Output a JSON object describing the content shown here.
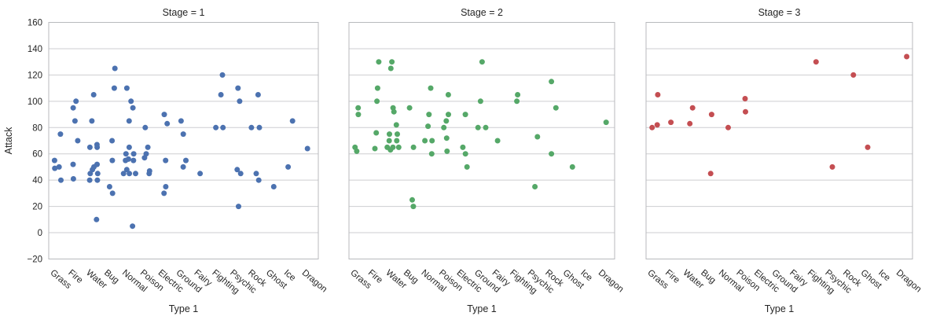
{
  "chart_data": {
    "type": "scatter",
    "subtype": "strip-plot",
    "facet_variable": "Stage",
    "xlabel": "Type 1",
    "ylabel": "Attack",
    "ylim": [
      -20,
      160
    ],
    "yticks": [
      160,
      140,
      120,
      100,
      80,
      60,
      40,
      20,
      0,
      -20
    ],
    "ytick_labels": [
      "160",
      "140",
      "120",
      "100",
      "80",
      "60",
      "40",
      "20",
      "0",
      "−20"
    ],
    "grid": true,
    "legend": false,
    "categories": [
      "Grass",
      "Fire",
      "Water",
      "Bug",
      "Normal",
      "Poison",
      "Electric",
      "Ground",
      "Fairy",
      "Fighting",
      "Psychic",
      "Rock",
      "Ghost",
      "Ice",
      "Dragon"
    ],
    "style": {
      "text_color": "#262626",
      "grid_color": "#cdced1",
      "spine_color": "#b8babd",
      "background": "#ffffff"
    },
    "panels": [
      {
        "title": "Stage = 1",
        "color": "#4c72b0",
        "points": [
          [
            "Grass",
            49
          ],
          [
            "Grass",
            50
          ],
          [
            "Grass",
            75
          ],
          [
            "Grass",
            40
          ],
          [
            "Grass",
            55
          ],
          [
            "Fire",
            52
          ],
          [
            "Fire",
            41
          ],
          [
            "Fire",
            70
          ],
          [
            "Fire",
            85
          ],
          [
            "Fire",
            95
          ],
          [
            "Fire",
            100
          ],
          [
            "Water",
            48
          ],
          [
            "Water",
            52
          ],
          [
            "Water",
            50
          ],
          [
            "Water",
            40
          ],
          [
            "Water",
            65
          ],
          [
            "Water",
            45
          ],
          [
            "Water",
            65
          ],
          [
            "Water",
            105
          ],
          [
            "Water",
            40
          ],
          [
            "Water",
            67
          ],
          [
            "Water",
            45
          ],
          [
            "Water",
            10
          ],
          [
            "Water",
            85
          ],
          [
            "Bug",
            30
          ],
          [
            "Bug",
            35
          ],
          [
            "Bug",
            70
          ],
          [
            "Bug",
            55
          ],
          [
            "Bug",
            110
          ],
          [
            "Bug",
            125
          ],
          [
            "Normal",
            45
          ],
          [
            "Normal",
            56
          ],
          [
            "Normal",
            60
          ],
          [
            "Normal",
            45
          ],
          [
            "Normal",
            45
          ],
          [
            "Normal",
            65
          ],
          [
            "Normal",
            85
          ],
          [
            "Normal",
            55
          ],
          [
            "Normal",
            5
          ],
          [
            "Normal",
            95
          ],
          [
            "Normal",
            100
          ],
          [
            "Normal",
            48
          ],
          [
            "Normal",
            55
          ],
          [
            "Normal",
            60
          ],
          [
            "Normal",
            110
          ],
          [
            "Poison",
            60
          ],
          [
            "Poison",
            47
          ],
          [
            "Poison",
            57
          ],
          [
            "Poison",
            45
          ],
          [
            "Poison",
            80
          ],
          [
            "Poison",
            65
          ],
          [
            "Electric",
            55
          ],
          [
            "Electric",
            35
          ],
          [
            "Electric",
            30
          ],
          [
            "Electric",
            83
          ],
          [
            "Electric",
            90
          ],
          [
            "Ground",
            75
          ],
          [
            "Ground",
            55
          ],
          [
            "Ground",
            50
          ],
          [
            "Ground",
            85
          ],
          [
            "Fairy",
            45
          ],
          [
            "Fighting",
            80
          ],
          [
            "Fighting",
            80
          ],
          [
            "Fighting",
            120
          ],
          [
            "Fighting",
            105
          ],
          [
            "Psychic",
            20
          ],
          [
            "Psychic",
            48
          ],
          [
            "Psychic",
            45
          ],
          [
            "Psychic",
            110
          ],
          [
            "Psychic",
            100
          ],
          [
            "Rock",
            80
          ],
          [
            "Rock",
            45
          ],
          [
            "Rock",
            40
          ],
          [
            "Rock",
            80
          ],
          [
            "Rock",
            105
          ],
          [
            "Ghost",
            35
          ],
          [
            "Ice",
            50
          ],
          [
            "Ice",
            85
          ],
          [
            "Dragon",
            64
          ]
        ]
      },
      {
        "title": "Stage = 2",
        "color": "#55a868",
        "points": [
          [
            "Grass",
            62
          ],
          [
            "Grass",
            65
          ],
          [
            "Grass",
            90
          ],
          [
            "Grass",
            95
          ],
          [
            "Fire",
            64
          ],
          [
            "Fire",
            76
          ],
          [
            "Fire",
            110
          ],
          [
            "Fire",
            100
          ],
          [
            "Fire",
            130
          ],
          [
            "Water",
            63
          ],
          [
            "Water",
            82
          ],
          [
            "Water",
            65
          ],
          [
            "Water",
            70
          ],
          [
            "Water",
            75
          ],
          [
            "Water",
            70
          ],
          [
            "Water",
            95
          ],
          [
            "Water",
            130
          ],
          [
            "Water",
            65
          ],
          [
            "Water",
            92
          ],
          [
            "Water",
            75
          ],
          [
            "Water",
            125
          ],
          [
            "Water",
            65
          ],
          [
            "Bug",
            20
          ],
          [
            "Bug",
            25
          ],
          [
            "Bug",
            95
          ],
          [
            "Bug",
            65
          ],
          [
            "Normal",
            60
          ],
          [
            "Normal",
            81
          ],
          [
            "Normal",
            90
          ],
          [
            "Normal",
            70
          ],
          [
            "Normal",
            70
          ],
          [
            "Normal",
            110
          ],
          [
            "Poison",
            85
          ],
          [
            "Poison",
            62
          ],
          [
            "Poison",
            72
          ],
          [
            "Poison",
            80
          ],
          [
            "Poison",
            105
          ],
          [
            "Poison",
            90
          ],
          [
            "Electric",
            90
          ],
          [
            "Electric",
            60
          ],
          [
            "Electric",
            50
          ],
          [
            "Electric",
            65
          ],
          [
            "Ground",
            100
          ],
          [
            "Ground",
            80
          ],
          [
            "Ground",
            80
          ],
          [
            "Ground",
            130
          ],
          [
            "Fairy",
            70
          ],
          [
            "Fighting",
            100
          ],
          [
            "Fighting",
            105
          ],
          [
            "Psychic",
            35
          ],
          [
            "Psychic",
            73
          ],
          [
            "Rock",
            95
          ],
          [
            "Rock",
            60
          ],
          [
            "Rock",
            115
          ],
          [
            "Ghost",
            50
          ],
          [
            "Dragon",
            84
          ]
        ]
      },
      {
        "title": "Stage = 3",
        "color": "#c44e52",
        "points": [
          [
            "Grass",
            82
          ],
          [
            "Grass",
            80
          ],
          [
            "Grass",
            105
          ],
          [
            "Fire",
            84
          ],
          [
            "Water",
            83
          ],
          [
            "Water",
            95
          ],
          [
            "Bug",
            45
          ],
          [
            "Bug",
            90
          ],
          [
            "Normal",
            80
          ],
          [
            "Poison",
            92
          ],
          [
            "Poison",
            102
          ],
          [
            "Fighting",
            130
          ],
          [
            "Psychic",
            50
          ],
          [
            "Rock",
            120
          ],
          [
            "Ghost",
            65
          ],
          [
            "Dragon",
            134
          ]
        ]
      }
    ]
  }
}
